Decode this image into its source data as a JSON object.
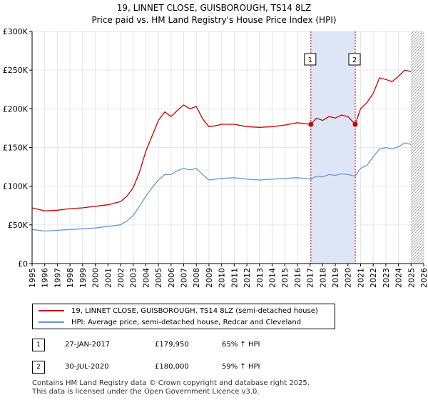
{
  "title_line1": "19, LINNET CLOSE, GUISBOROUGH, TS14 8LZ",
  "title_line2": "Price paid vs. HM Land Registry's House Price Index (HPI)",
  "colors": {
    "property": "#cc0000",
    "hpi": "#6699cc",
    "shade": "#dde6f7",
    "marker_line": "#cc0000",
    "hatch": "#999999"
  },
  "legend": {
    "property_label": "19, LINNET CLOSE, GUISBOROUGH, TS14 8LZ (semi-detached house)",
    "hpi_label": "HPI: Average price, semi-detached house, Redcar and Cleveland"
  },
  "transactions": [
    {
      "num": "1",
      "date": "27-JAN-2017",
      "price": "£179,950",
      "hpi_change": "65% ↑ HPI"
    },
    {
      "num": "2",
      "date": "30-JUL-2020",
      "price": "£180,000",
      "hpi_change": "59% ↑ HPI"
    }
  ],
  "footer_line1": "Contains HM Land Registry data © Crown copyright and database right 2025.",
  "footer_line2": "This data is licensed under the Open Government Licence v3.0.",
  "chart_data": {
    "type": "line",
    "xlim": [
      1995,
      2026
    ],
    "ylim": [
      0,
      300000
    ],
    "x_ticks": [
      "1995",
      "1996",
      "1997",
      "1998",
      "1999",
      "2000",
      "2001",
      "2002",
      "2003",
      "2004",
      "2005",
      "2006",
      "2007",
      "2008",
      "2009",
      "2010",
      "2011",
      "2012",
      "2013",
      "2014",
      "2015",
      "2016",
      "2017",
      "2018",
      "2019",
      "2020",
      "2021",
      "2022",
      "2023",
      "2024",
      "2025",
      "2026"
    ],
    "y_ticks": [
      0,
      50000,
      100000,
      150000,
      200000,
      250000,
      300000
    ],
    "y_tick_labels": [
      "£0",
      "£50K",
      "£100K",
      "£150K",
      "£200K",
      "£250K",
      "£300K"
    ],
    "shaded_range": [
      2017.07,
      2020.58
    ],
    "data_end": 2025.0,
    "markers": [
      {
        "label": "1",
        "x": 2017.07,
        "y": 179950
      },
      {
        "label": "2",
        "x": 2020.58,
        "y": 180000
      }
    ],
    "series": [
      {
        "name": "19, LINNET CLOSE, GUISBOROUGH, TS14 8LZ (semi-detached house)",
        "color": "#cc0000",
        "x": [
          1995,
          1996,
          1997,
          1998,
          1999,
          2000,
          2001,
          2002,
          2002.5,
          2003,
          2003.5,
          2004,
          2004.5,
          2005,
          2005.5,
          2006,
          2006.5,
          2007,
          2007.5,
          2008,
          2008.5,
          2009,
          2009.5,
          2010,
          2011,
          2012,
          2013,
          2014,
          2015,
          2016,
          2017.07,
          2017.5,
          2018,
          2018.5,
          2019,
          2019.5,
          2020,
          2020.58,
          2021,
          2021.5,
          2022,
          2022.5,
          2023,
          2023.5,
          2024,
          2024.5,
          2025
        ],
        "values": [
          72000,
          68000,
          69000,
          71000,
          72000,
          74000,
          76000,
          80000,
          87000,
          98000,
          118000,
          145000,
          165000,
          185000,
          196000,
          190000,
          198000,
          205000,
          200000,
          203000,
          187000,
          177000,
          178000,
          180000,
          180000,
          177000,
          176000,
          177000,
          179000,
          182000,
          179950,
          188000,
          185000,
          190000,
          188000,
          192000,
          190000,
          180000,
          200000,
          208000,
          220000,
          240000,
          238000,
          235000,
          242000,
          250000,
          248000
        ]
      },
      {
        "name": "HPI: Average price, semi-detached house, Redcar and Cleveland",
        "color": "#6699cc",
        "x": [
          1995,
          1996,
          1997,
          1998,
          1999,
          2000,
          2001,
          2002,
          2002.5,
          2003,
          2003.5,
          2004,
          2004.5,
          2005,
          2005.5,
          2006,
          2006.5,
          2007,
          2007.5,
          2008,
          2008.5,
          2009,
          2009.5,
          2010,
          2011,
          2012,
          2013,
          2014,
          2015,
          2016,
          2017.07,
          2017.5,
          2018,
          2018.5,
          2019,
          2019.5,
          2020,
          2020.58,
          2021,
          2021.5,
          2022,
          2022.5,
          2023,
          2023.5,
          2024,
          2024.5,
          2025
        ],
        "values": [
          44000,
          42000,
          43000,
          44000,
          45000,
          46000,
          48000,
          50000,
          55000,
          62000,
          74000,
          87000,
          98000,
          108000,
          115000,
          115000,
          120000,
          123000,
          121000,
          123000,
          115000,
          108000,
          109000,
          110000,
          111000,
          109000,
          108000,
          109000,
          110000,
          111000,
          109000,
          113000,
          112000,
          115000,
          114000,
          116000,
          115000,
          113000,
          123000,
          127000,
          138000,
          148000,
          150000,
          148000,
          151000,
          156000,
          154000
        ]
      }
    ]
  }
}
